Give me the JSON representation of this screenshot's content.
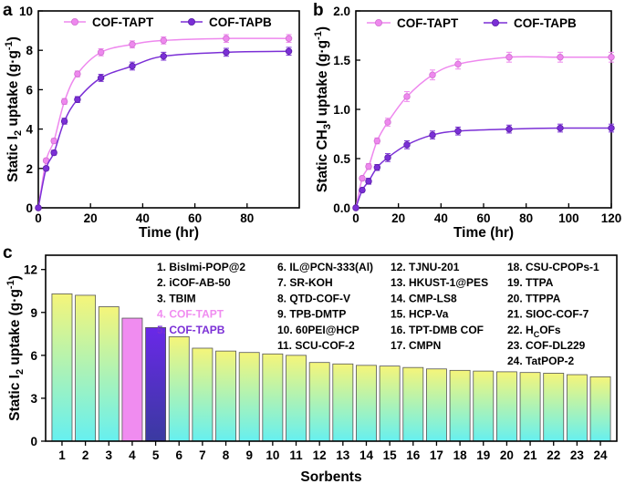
{
  "colors": {
    "tapt": "#ee88ee",
    "tapb": "#7b2fd6",
    "bar_top": "#f5f57a",
    "bar_bottom": "#66f0f0",
    "bar_tapt": "#f08cf0",
    "bar_tapb_top": "#6a28e8",
    "bar_tapb_bottom": "#3a3aa0"
  },
  "panels": {
    "a": "a",
    "b": "b",
    "c": "c"
  },
  "chart_data": [
    {
      "panel": "a",
      "type": "line",
      "xlabel": "Time (hr)",
      "ylabel_main": "Static I",
      "ylabel_sub": "2",
      "ylabel_rest": " uptake (g·g",
      "ylabel_sup": "-1",
      "ylabel_end": ")",
      "xlim": [
        0,
        100
      ],
      "ylim": [
        0,
        10
      ],
      "xticks": [
        0,
        20,
        40,
        60,
        80
      ],
      "yticks": [
        0,
        2,
        4,
        6,
        8,
        10
      ],
      "legend_position": "top-center",
      "series": [
        {
          "name": "COF-TAPT",
          "x": [
            0,
            3,
            6,
            10,
            15,
            24,
            36,
            48,
            72,
            96
          ],
          "y": [
            0,
            2.4,
            3.4,
            5.4,
            6.8,
            7.9,
            8.3,
            8.5,
            8.6,
            8.6
          ],
          "err": [
            0,
            0.1,
            0.12,
            0.15,
            0.15,
            0.18,
            0.18,
            0.18,
            0.2,
            0.2
          ]
        },
        {
          "name": "COF-TAPB",
          "x": [
            0,
            3,
            6,
            10,
            15,
            24,
            36,
            48,
            72,
            96
          ],
          "y": [
            0,
            2.0,
            2.8,
            4.4,
            5.5,
            6.6,
            7.2,
            7.7,
            7.9,
            7.95
          ],
          "err": [
            0,
            0.1,
            0.12,
            0.15,
            0.15,
            0.18,
            0.2,
            0.2,
            0.2,
            0.2
          ]
        }
      ]
    },
    {
      "panel": "b",
      "type": "line",
      "xlabel": "Time (hr)",
      "ylabel_main": "Static CH",
      "ylabel_sub": "3",
      "ylabel_rest": "I uptake (g·g",
      "ylabel_sup": "-1",
      "ylabel_end": ")",
      "xlim": [
        0,
        120
      ],
      "ylim": [
        0,
        2.0
      ],
      "xticks": [
        0,
        20,
        40,
        60,
        80,
        100,
        120
      ],
      "yticks": [
        0.0,
        0.5,
        1.0,
        1.5,
        2.0
      ],
      "ytick_labels": [
        "0.0",
        "0.5",
        "1.0",
        "1.5",
        "2.0"
      ],
      "legend_position": "top",
      "series": [
        {
          "name": "COF-TAPT",
          "x": [
            0,
            3,
            6,
            10,
            15,
            24,
            36,
            48,
            72,
            96,
            120
          ],
          "y": [
            0,
            0.3,
            0.42,
            0.68,
            0.87,
            1.13,
            1.35,
            1.46,
            1.53,
            1.53,
            1.53
          ],
          "err": [
            0,
            0.02,
            0.03,
            0.03,
            0.04,
            0.05,
            0.05,
            0.05,
            0.05,
            0.05,
            0.05
          ]
        },
        {
          "name": "COF-TAPB",
          "x": [
            0,
            3,
            6,
            10,
            15,
            24,
            36,
            48,
            72,
            96,
            120
          ],
          "y": [
            0,
            0.18,
            0.27,
            0.41,
            0.51,
            0.64,
            0.74,
            0.78,
            0.8,
            0.81,
            0.81
          ],
          "err": [
            0,
            0.02,
            0.03,
            0.03,
            0.04,
            0.04,
            0.04,
            0.04,
            0.04,
            0.04,
            0.04
          ]
        }
      ]
    },
    {
      "panel": "c",
      "type": "bar",
      "xlabel": "Sorbents",
      "ylabel_main": "Static I",
      "ylabel_sub": "2",
      "ylabel_rest": " uptake (g·g",
      "ylabel_sup": "-1",
      "ylabel_end": ")",
      "ylim": [
        0,
        13
      ],
      "yticks": [
        0,
        3,
        6,
        9,
        12
      ],
      "categories": [
        "1",
        "2",
        "3",
        "4",
        "5",
        "6",
        "7",
        "8",
        "9",
        "10",
        "11",
        "12",
        "13",
        "14",
        "15",
        "16",
        "17",
        "18",
        "19",
        "20",
        "21",
        "22",
        "23",
        "24"
      ],
      "values": [
        10.3,
        10.2,
        9.4,
        8.6,
        7.94,
        7.3,
        6.5,
        6.3,
        6.2,
        6.1,
        6.0,
        5.5,
        5.4,
        5.3,
        5.25,
        5.15,
        5.05,
        4.95,
        4.9,
        4.85,
        4.8,
        4.75,
        4.65,
        4.5
      ],
      "legend": [
        [
          "1. BisImi-POP@2",
          "2. iCOF-AB-50",
          "3. TBIM",
          "4. COF-TAPT",
          "5. COF-TAPB"
        ],
        [
          "6. IL@PCN-333(Al)",
          "7. SR-KOH",
          "8. QTD-COF-V",
          "9. TPB-DMTP",
          "10. 60PEI@HCP",
          "11. SCU-COF-2"
        ],
        [
          "12. TJNU-201",
          "13. HKUST-1@PES",
          "14. CMP-LS8",
          "15. HCP-Va",
          "16. TPT-DMB COF",
          "17. CMPN"
        ],
        [
          "18. CSU-CPOPs-1",
          "19. TTPA",
          "20. TTPPA",
          "21. SIOC-COF-7",
          "22. H",
          "23. COF-DL229",
          "24. TatPOP-2"
        ]
      ],
      "legend_22_sub": "C",
      "legend_22_rest": "OFs"
    }
  ]
}
